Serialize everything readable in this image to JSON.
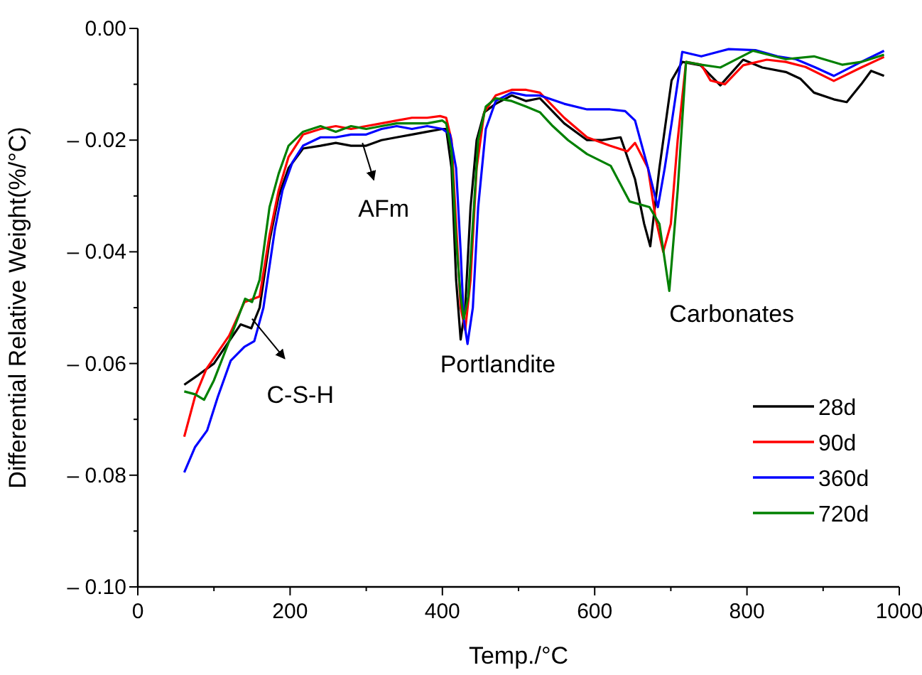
{
  "chart_data": {
    "type": "line",
    "xlabel": "Temp./°C",
    "ylabel": "Differential Relative Weight(%/°C)",
    "xlim": [
      0,
      1000
    ],
    "ylim": [
      -0.1,
      0
    ],
    "xticks": [
      0,
      {
        "value": 100,
        "label": null
      },
      200,
      {
        "value": 300,
        "label": null
      },
      400,
      {
        "value": 500,
        "label": null
      },
      600,
      {
        "value": 700,
        "label": null
      },
      800,
      {
        "value": 900,
        "label": null
      },
      1000
    ],
    "yticks": [
      {
        "value": -0.1,
        "label": "– 0.10"
      },
      {
        "value": -0.09,
        "label": null
      },
      {
        "value": -0.08,
        "label": "– 0.08"
      },
      {
        "value": -0.07,
        "label": null
      },
      {
        "value": -0.06,
        "label": "– 0.06"
      },
      {
        "value": -0.05,
        "label": null
      },
      {
        "value": -0.04,
        "label": "– 0.04"
      },
      {
        "value": -0.03,
        "label": null
      },
      {
        "value": -0.02,
        "label": "– 0.02"
      },
      {
        "value": -0.01,
        "label": null
      },
      {
        "value": 0,
        "label": "0.00"
      }
    ],
    "legend": "bottom right",
    "grid": false,
    "marker": "none",
    "line_style": "solid",
    "series": [
      {
        "name": "28d",
        "color": "#000000",
        "x": [
          61,
          80,
          100,
          120,
          135,
          149,
          160,
          173,
          185,
          198,
          217,
          240,
          260,
          280,
          300,
          320,
          340,
          360,
          380,
          400,
          405,
          412,
          418,
          424,
          430,
          437,
          445,
          455,
          470,
          491,
          510,
          528,
          560,
          590,
          610,
          634,
          653,
          665,
          673,
          685,
          701,
          715,
          739,
          765,
          795,
          820,
          851,
          870,
          888,
          914,
          931,
          950,
          963,
          980
        ],
        "values": [
          -0.0638,
          -0.062,
          -0.06,
          -0.056,
          -0.053,
          -0.0537,
          -0.05,
          -0.038,
          -0.03,
          -0.025,
          -0.0215,
          -0.021,
          -0.0205,
          -0.021,
          -0.021,
          -0.02,
          -0.0195,
          -0.019,
          -0.0185,
          -0.018,
          -0.018,
          -0.025,
          -0.045,
          -0.0557,
          -0.05,
          -0.032,
          -0.02,
          -0.015,
          -0.0135,
          -0.012,
          -0.013,
          -0.0125,
          -0.017,
          -0.02,
          -0.02,
          -0.0195,
          -0.027,
          -0.035,
          -0.039,
          -0.025,
          -0.0093,
          -0.006,
          -0.0066,
          -0.0102,
          -0.0056,
          -0.007,
          -0.0078,
          -0.009,
          -0.0115,
          -0.0127,
          -0.0132,
          -0.01,
          -0.0076,
          -0.0085
        ]
      },
      {
        "name": "90d",
        "color": "#ff0000",
        "x": [
          61,
          75,
          90,
          105,
          120,
          140,
          160,
          173,
          185,
          198,
          217,
          240,
          260,
          280,
          300,
          320,
          340,
          360,
          380,
          397,
          405,
          412,
          418,
          424,
          430,
          437,
          445,
          455,
          470,
          491,
          510,
          528,
          560,
          590,
          620,
          643,
          653,
          670,
          680,
          690,
          700,
          709,
          720,
          740,
          752,
          771,
          795,
          826,
          851,
          877,
          914,
          950,
          980
        ],
        "values": [
          -0.0731,
          -0.066,
          -0.061,
          -0.058,
          -0.055,
          -0.049,
          -0.048,
          -0.037,
          -0.029,
          -0.023,
          -0.019,
          -0.018,
          -0.0175,
          -0.018,
          -0.0175,
          -0.017,
          -0.0165,
          -0.016,
          -0.016,
          -0.0157,
          -0.016,
          -0.02,
          -0.035,
          -0.05,
          -0.054,
          -0.045,
          -0.025,
          -0.015,
          -0.012,
          -0.011,
          -0.011,
          -0.0115,
          -0.016,
          -0.0195,
          -0.021,
          -0.022,
          -0.0205,
          -0.025,
          -0.034,
          -0.04,
          -0.035,
          -0.02,
          -0.006,
          -0.0065,
          -0.0093,
          -0.01,
          -0.0066,
          -0.0056,
          -0.006,
          -0.0069,
          -0.0094,
          -0.007,
          -0.0051
        ]
      },
      {
        "name": "360d",
        "color": "#0000ff",
        "x": [
          61,
          75,
          91,
          105,
          122,
          140,
          153,
          165,
          180,
          190,
          203,
          217,
          240,
          260,
          280,
          300,
          320,
          340,
          360,
          380,
          400,
          410,
          418,
          424,
          428,
          433,
          440,
          447,
          457,
          470,
          491,
          510,
          528,
          560,
          590,
          620,
          640,
          653,
          670,
          683,
          692,
          701,
          715,
          740,
          776,
          811,
          840,
          864,
          890,
          914,
          950,
          980
        ],
        "values": [
          -0.0795,
          -0.075,
          -0.072,
          -0.066,
          -0.0595,
          -0.057,
          -0.056,
          -0.05,
          -0.036,
          -0.029,
          -0.024,
          -0.021,
          -0.0195,
          -0.0195,
          -0.019,
          -0.019,
          -0.018,
          -0.0175,
          -0.018,
          -0.0175,
          -0.018,
          -0.019,
          -0.025,
          -0.04,
          -0.052,
          -0.0565,
          -0.05,
          -0.032,
          -0.018,
          -0.013,
          -0.0115,
          -0.012,
          -0.012,
          -0.0135,
          -0.0145,
          -0.0145,
          -0.0148,
          -0.0165,
          -0.025,
          -0.032,
          -0.025,
          -0.017,
          -0.0042,
          -0.005,
          -0.0037,
          -0.0039,
          -0.005,
          -0.0055,
          -0.007,
          -0.0085,
          -0.006,
          -0.004
        ]
      },
      {
        "name": "720d",
        "color": "#008000",
        "x": [
          61,
          75,
          87,
          100,
          120,
          141,
          150,
          160,
          173,
          185,
          198,
          217,
          240,
          260,
          280,
          300,
          320,
          340,
          360,
          380,
          400,
          405,
          412,
          418,
          424,
          428,
          434,
          440,
          447,
          457,
          470,
          491,
          510,
          528,
          545,
          565,
          590,
          621,
          646,
          672,
          685,
          698,
          709,
          720,
          740,
          765,
          808,
          851,
          888,
          925,
          950,
          980
        ],
        "values": [
          -0.065,
          -0.0655,
          -0.0665,
          -0.063,
          -0.056,
          -0.0484,
          -0.049,
          -0.045,
          -0.032,
          -0.026,
          -0.021,
          -0.0185,
          -0.0175,
          -0.0185,
          -0.0175,
          -0.018,
          -0.0175,
          -0.017,
          -0.017,
          -0.017,
          -0.0165,
          -0.017,
          -0.022,
          -0.038,
          -0.048,
          -0.052,
          -0.048,
          -0.035,
          -0.02,
          -0.014,
          -0.0125,
          -0.013,
          -0.014,
          -0.015,
          -0.0175,
          -0.02,
          -0.0225,
          -0.0246,
          -0.031,
          -0.032,
          -0.035,
          -0.047,
          -0.029,
          -0.006,
          -0.0065,
          -0.007,
          -0.004,
          -0.0055,
          -0.005,
          -0.0065,
          -0.006,
          -0.0047
        ]
      }
    ],
    "annotations": [
      {
        "text": "AFm",
        "x": 295,
        "y": -0.0205
      },
      {
        "text": "C-S-H",
        "x": 150,
        "y": -0.052
      },
      {
        "text": "Portlandite",
        "x": 430,
        "y": -0.056
      },
      {
        "text": "Carbonates",
        "x": 698,
        "y": -0.047
      }
    ]
  }
}
